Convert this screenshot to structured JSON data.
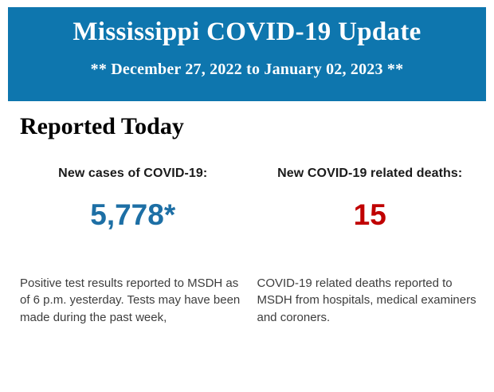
{
  "banner": {
    "title": "Mississippi COVID-19 Update",
    "date_range": "** December 27, 2022 to January 02, 2023 **",
    "background_color": "#0e76ae",
    "text_color": "#ffffff"
  },
  "main": {
    "section_title": "Reported Today",
    "stats": [
      {
        "heading": "New cases of COVID-19:",
        "value": "5,778*",
        "value_color": "#1d6fa5",
        "description": "Positive test results reported to MSDH as of 6 p.m. yesterday. Tests may have been made during the past week,"
      },
      {
        "heading": "New COVID-19 related deaths:",
        "value": "15",
        "value_color": "#c00000",
        "description": "COVID-19 related deaths reported to MSDH from hospitals, medical examiners and coroners."
      }
    ]
  }
}
